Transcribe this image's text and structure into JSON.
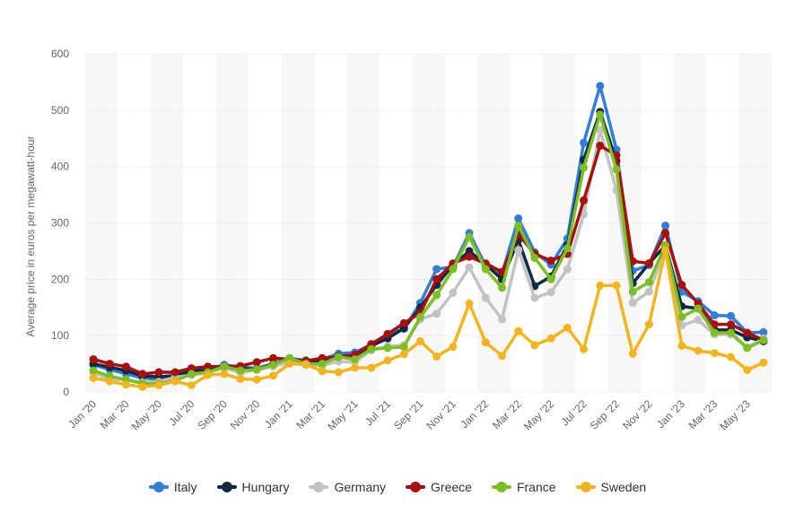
{
  "chart_data": {
    "type": "line",
    "title": "",
    "xlabel": "",
    "ylabel": "Average price in euros per megawatt-hour",
    "ylim": [
      0,
      600
    ],
    "yticks": [
      0,
      100,
      200,
      300,
      400,
      500,
      600
    ],
    "grid": "horizontal",
    "legend_position": "bottom",
    "x": [
      "Jan '20",
      "Feb '20",
      "Mar '20",
      "Apr '20",
      "May '20",
      "Jun '20",
      "Jul '20",
      "Aug '20",
      "Sep '20",
      "Oct '20",
      "Nov '20",
      "Dec '20",
      "Jan '21",
      "Feb '21",
      "Mar '21",
      "Apr '21",
      "May '21",
      "Jun '21",
      "Jul '21",
      "Aug '21",
      "Sep '21",
      "Oct '21",
      "Nov '21",
      "Dec '21",
      "Jan '22",
      "Feb '22",
      "Mar '22",
      "Apr '22",
      "May '22",
      "Jun '22",
      "Jul '22",
      "Aug '22",
      "Sep '22",
      "Oct '22",
      "Nov '22",
      "Dec '22",
      "Jan '23",
      "Feb '23",
      "Mar '23",
      "Apr '23",
      "May '23",
      "Jun '23"
    ],
    "x_tick_labels": [
      "Jan '20",
      "Mar '20",
      "May '20",
      "Jul '20",
      "Sep '20",
      "Nov '20",
      "Jan '21",
      "Mar '21",
      "May '21",
      "Jul '21",
      "Sep '21",
      "Nov '21",
      "Jan '22",
      "Mar '22",
      "May '22",
      "Jul '22",
      "Sep '22",
      "Nov '22",
      "Jan '23",
      "Mar '23",
      "May '23"
    ],
    "series": [
      {
        "name": "Italy",
        "color": "#2f7ed8",
        "values": [
          48,
          40,
          32,
          25,
          22,
          28,
          38,
          40,
          48,
          44,
          42,
          50,
          60,
          56,
          58,
          68,
          70,
          84,
          102,
          112,
          158,
          218,
          222,
          282,
          224,
          210,
          308,
          248,
          226,
          272,
          442,
          543,
          430,
          215,
          225,
          295,
          178,
          161,
          136,
          135,
          105,
          106
        ]
      },
      {
        "name": "Hungary",
        "color": "#102a43",
        "values": [
          50,
          44,
          38,
          28,
          27,
          29,
          37,
          38,
          45,
          42,
          40,
          50,
          57,
          52,
          53,
          63,
          64,
          82,
          95,
          113,
          150,
          190,
          225,
          250,
          226,
          200,
          270,
          188,
          205,
          260,
          412,
          497,
          410,
          193,
          228,
          260,
          152,
          148,
          110,
          110,
          97,
          90
        ]
      },
      {
        "name": "Germany",
        "color": "#c2c2c2",
        "values": [
          35,
          22,
          22,
          17,
          18,
          26,
          30,
          34,
          43,
          34,
          39,
          45,
          53,
          48,
          47,
          54,
          53,
          74,
          81,
          83,
          129,
          139,
          176,
          221,
          167,
          129,
          252,
          167,
          177,
          218,
          315,
          465,
          358,
          158,
          178,
          252,
          118,
          128,
          102,
          102,
          79,
          95
        ]
      },
      {
        "name": "Greece",
        "color": "#a80f0f",
        "values": [
          58,
          50,
          45,
          32,
          35,
          35,
          42,
          45,
          45,
          46,
          53,
          60,
          58,
          55,
          60,
          62,
          66,
          85,
          103,
          122,
          140,
          200,
          228,
          240,
          228,
          213,
          280,
          245,
          233,
          245,
          340,
          437,
          420,
          232,
          228,
          282,
          190,
          157,
          120,
          120,
          105,
          92
        ]
      },
      {
        "name": "France",
        "color": "#7cbf22",
        "values": [
          38,
          28,
          22,
          15,
          15,
          20,
          32,
          35,
          45,
          38,
          40,
          48,
          60,
          50,
          50,
          62,
          58,
          76,
          78,
          80,
          133,
          172,
          218,
          275,
          218,
          185,
          295,
          238,
          200,
          255,
          398,
          492,
          395,
          178,
          195,
          260,
          133,
          148,
          105,
          105,
          78,
          92
        ]
      },
      {
        "name": "Sweden",
        "color": "#f2b51f",
        "values": [
          25,
          19,
          13,
          9,
          12,
          19,
          12,
          30,
          32,
          23,
          22,
          29,
          50,
          49,
          37,
          35,
          43,
          43,
          56,
          67,
          90,
          63,
          80,
          157,
          88,
          64,
          108,
          83,
          95,
          114,
          76,
          189,
          189,
          68,
          120,
          252,
          82,
          73,
          69,
          62,
          39,
          52
        ]
      }
    ]
  }
}
